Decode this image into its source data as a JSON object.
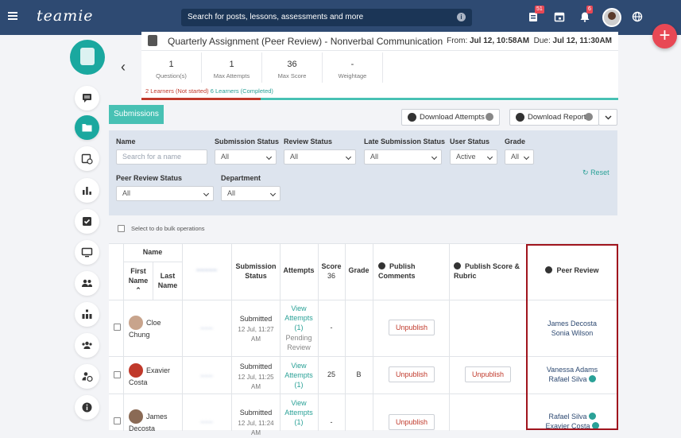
{
  "topbar": {
    "logo": "teamie",
    "search_placeholder": "Search for posts, lessons, assessments and more",
    "notif_badge_1": "51",
    "notif_badge_2": "6"
  },
  "header": {
    "title": "Quarterly Assignment (Peer Review) - Nonverbal Communication",
    "from_label": "From:",
    "from_value": "Jul 12, 10:58AM",
    "due_label": "Due:",
    "due_value": "Jul 12, 11:30AM",
    "stats": [
      {
        "value": "1",
        "label": "Question(s)"
      },
      {
        "value": "1",
        "label": "Max Attempts"
      },
      {
        "value": "36",
        "label": "Max Score"
      },
      {
        "value": "-",
        "label": "Weightage"
      }
    ],
    "not_started": "2 Learners (Not started)",
    "completed": "6 Learners (Completed)",
    "progress_fraction": 0.25
  },
  "actions": {
    "submissions_tab": "Submissions",
    "download_attempts": "Download Attempts",
    "download_report": "Download Report"
  },
  "filters": {
    "name_label": "Name",
    "name_placeholder": "Search for a name",
    "submission_status_label": "Submission Status",
    "submission_status_value": "All",
    "review_status_label": "Review Status",
    "review_status_value": "All",
    "late_status_label": "Late Submission Status",
    "late_status_value": "All",
    "user_status_label": "User Status",
    "user_status_value": "Active",
    "grade_label": "Grade",
    "grade_value": "All",
    "peer_review_status_label": "Peer Review Status",
    "peer_review_status_value": "All",
    "department_label": "Department",
    "department_value": "All",
    "reset": "Reset"
  },
  "bulk_label": "Select to do bulk operations",
  "table": {
    "headers": {
      "name": "Name",
      "first_name": "First Name",
      "last_name": "Last Name",
      "submission_status": "Submission Status",
      "attempts": "Attempts",
      "score": "Score",
      "score_max": "36",
      "grade": "Grade",
      "publish_comments": "Publish Comments",
      "publish_score": "Publish Score & Rubric",
      "peer_review": "Peer Review"
    },
    "rows": [
      {
        "first": "Cloe",
        "last": "Chung",
        "status": "Submitted",
        "time": "12 Jul, 11:27 AM",
        "attempts_link": "View Attempts (1)",
        "pending": "Pending Review",
        "score": "-",
        "grade": "",
        "unpublish_comments": "Unpublish",
        "unpublish_score": "",
        "reviewers": [
          "James Decosta",
          "Sonia Wilson"
        ]
      },
      {
        "first": "Exavier",
        "last": "Costa",
        "status": "Submitted",
        "time": "12 Jul, 11:25 AM",
        "attempts_link": "View Attempts (1)",
        "pending": "",
        "score": "25",
        "grade": "B",
        "unpublish_comments": "Unpublish",
        "unpublish_score": "Unpublish",
        "reviewers": [
          "Vanessa Adams",
          "Rafael Silva"
        ]
      },
      {
        "first": "James",
        "last": "Decosta",
        "status": "Submitted",
        "time": "12 Jul, 11:24 AM",
        "attempts_link": "View Attempts (1)",
        "pending": "",
        "score": "-",
        "grade": "",
        "unpublish_comments": "Unpublish",
        "unpublish_score": "",
        "reviewers": [
          "Rafael Silva",
          "Exavier Costa"
        ]
      }
    ]
  },
  "colors": {
    "brand": "#2e4a72",
    "accent": "#48c1b4",
    "danger": "#e84855",
    "highlight": "#a0141d"
  }
}
